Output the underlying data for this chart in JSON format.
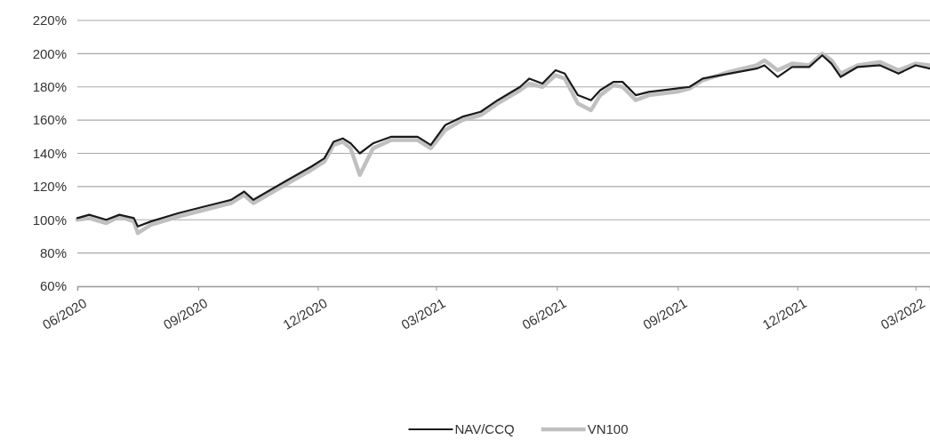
{
  "chart_data": {
    "type": "line",
    "ylim": [
      60,
      220
    ],
    "yticks": [
      {
        "value": 60,
        "label": "60%"
      },
      {
        "value": 80,
        "label": "80%"
      },
      {
        "value": 100,
        "label": "100%"
      },
      {
        "value": 120,
        "label": "120%"
      },
      {
        "value": 140,
        "label": "140%"
      },
      {
        "value": 160,
        "label": "160%"
      },
      {
        "value": 180,
        "label": "180%"
      },
      {
        "value": 200,
        "label": "200%"
      },
      {
        "value": 220,
        "label": "220%"
      }
    ],
    "xlim": [
      "2020-06-01",
      "2022-03-12"
    ],
    "xticks": [
      {
        "value": "2020-06-01",
        "label": "06/2020"
      },
      {
        "value": "2020-09-01",
        "label": "09/2020"
      },
      {
        "value": "2020-12-01",
        "label": "12/2020"
      },
      {
        "value": "2021-03-01",
        "label": "03/2021"
      },
      {
        "value": "2021-06-01",
        "label": "06/2021"
      },
      {
        "value": "2021-09-01",
        "label": "09/2021"
      },
      {
        "value": "2021-12-01",
        "label": "12/2021"
      },
      {
        "value": "2022-03-01",
        "label": "03/2022"
      }
    ],
    "x": [
      "2020-06-01",
      "2020-06-10",
      "2020-06-23",
      "2020-07-03",
      "2020-07-14",
      "2020-07-17",
      "2020-07-27",
      "2020-08-17",
      "2020-09-06",
      "2020-09-26",
      "2020-10-06",
      "2020-10-13",
      "2020-11-06",
      "2020-11-26",
      "2020-12-06",
      "2020-12-13",
      "2020-12-20",
      "2020-12-26",
      "2021-01-02",
      "2021-01-12",
      "2021-01-26",
      "2021-02-15",
      "2021-02-25",
      "2021-03-08",
      "2021-03-21",
      "2021-04-04",
      "2021-04-17",
      "2021-05-04",
      "2021-05-11",
      "2021-05-21",
      "2021-05-31",
      "2021-06-07",
      "2021-06-17",
      "2021-06-27",
      "2021-07-04",
      "2021-07-14",
      "2021-07-21",
      "2021-07-31",
      "2021-08-10",
      "2021-08-31",
      "2021-09-10",
      "2021-09-20",
      "2021-10-10",
      "2021-10-31",
      "2021-11-06",
      "2021-11-16",
      "2021-11-27",
      "2021-12-10",
      "2021-12-20",
      "2021-12-27",
      "2022-01-03",
      "2022-01-16",
      "2022-02-02",
      "2022-02-16",
      "2022-03-01",
      "2022-03-12"
    ],
    "series": [
      {
        "name": "NAV/CCQ",
        "color": "#1a1a1a",
        "values": [
          101,
          103,
          100,
          103,
          101,
          96,
          99,
          104,
          108,
          112,
          117,
          112,
          123,
          132,
          137,
          147,
          149,
          146,
          140,
          146,
          150,
          150,
          145,
          157,
          162,
          165,
          172,
          180,
          185,
          182,
          190,
          188,
          175,
          172,
          178,
          183,
          183,
          175,
          177,
          179,
          180,
          185,
          188,
          191,
          193,
          186,
          192,
          192,
          199,
          194,
          186,
          192,
          193,
          188,
          193,
          191
        ]
      },
      {
        "name": "VN100",
        "color": "#c0c0c0",
        "values": [
          100,
          101,
          98,
          102,
          99,
          92,
          97,
          102,
          106,
          110,
          115,
          110,
          121,
          130,
          135,
          145,
          147,
          143,
          127,
          143,
          148,
          148,
          143,
          154,
          160,
          163,
          170,
          178,
          182,
          180,
          187,
          185,
          170,
          166,
          175,
          181,
          180,
          172,
          175,
          177,
          179,
          184,
          189,
          193,
          196,
          190,
          194,
          193,
          200,
          196,
          188,
          193,
          195,
          190,
          194,
          193
        ]
      }
    ],
    "grid": "y",
    "legend": "bottom",
    "line_style": "solid",
    "marker": "none"
  }
}
